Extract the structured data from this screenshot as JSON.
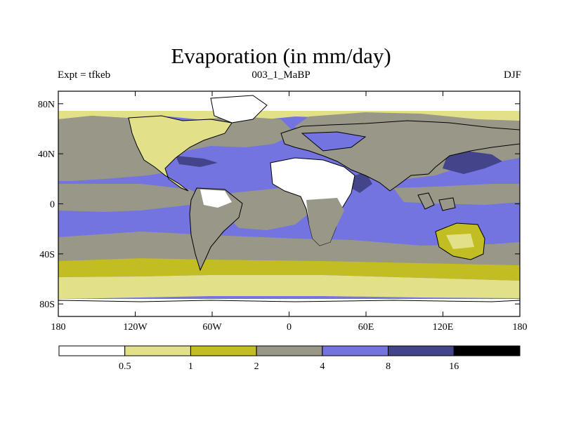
{
  "title": "Evaporation (in mm/day)",
  "subtitle_left": "Expt = tfkeb",
  "subtitle_center": "003_1_MaBP",
  "subtitle_right": "DJF",
  "map": {
    "projection": "cylindrical-equidistant",
    "lon_range": [
      -180,
      180
    ],
    "lat_range": [
      -90,
      90
    ],
    "x_ticks": [
      {
        "value": -180,
        "label": "180"
      },
      {
        "value": -120,
        "label": "120W"
      },
      {
        "value": -60,
        "label": "60W"
      },
      {
        "value": 0,
        "label": "0"
      },
      {
        "value": 60,
        "label": "60E"
      },
      {
        "value": 120,
        "label": "120E"
      },
      {
        "value": 180,
        "label": "180"
      }
    ],
    "y_ticks": [
      {
        "value": 80,
        "label": "80N"
      },
      {
        "value": 40,
        "label": "40N"
      },
      {
        "value": 0,
        "label": "0"
      },
      {
        "value": -40,
        "label": "40S"
      },
      {
        "value": -80,
        "label": "80S"
      }
    ]
  },
  "colorbar": {
    "labels": [
      "0.5",
      "1",
      "2",
      "4",
      "8",
      "16"
    ],
    "colors": [
      "#ffffff",
      "#e3e08a",
      "#c2bd22",
      "#999888",
      "#7474e0",
      "#44448a",
      "#000000"
    ]
  }
}
